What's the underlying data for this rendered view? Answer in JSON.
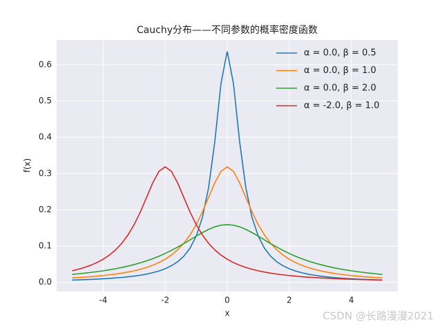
{
  "chart_data": {
    "type": "line",
    "title": "Cauchy分布——不同参数的概率密度函数",
    "xlabel": "x",
    "ylabel": "f(x)",
    "x": [
      -5,
      -4.8,
      -4.6,
      -4.4,
      -4.2,
      -4,
      -3.8,
      -3.6,
      -3.4,
      -3.2,
      -3,
      -2.8,
      -2.6,
      -2.4,
      -2.2,
      -2,
      -1.8,
      -1.6,
      -1.4,
      -1.2,
      -1,
      -0.8,
      -0.6,
      -0.4,
      -0.2,
      0,
      0.2,
      0.4,
      0.6,
      0.8,
      1,
      1.2,
      1.4,
      1.6,
      1.8,
      2,
      2.2,
      2.4,
      2.6,
      2.8,
      3,
      3.2,
      3.4,
      3.6,
      3.8,
      4,
      4.2,
      4.4,
      4.6,
      4.8,
      5
    ],
    "series": [
      {
        "name": "α = 0.0, β = 0.5",
        "color": "#1f77b4",
        "values": [
          0.0063,
          0.0068,
          0.0074,
          0.0081,
          0.0089,
          0.0098,
          0.0108,
          0.0121,
          0.0135,
          0.0152,
          0.0172,
          0.0197,
          0.0227,
          0.0265,
          0.0313,
          0.0375,
          0.0456,
          0.0566,
          0.072,
          0.0942,
          0.1273,
          0.1788,
          0.2609,
          0.3882,
          0.5488,
          0.6366,
          0.5488,
          0.3882,
          0.2609,
          0.1788,
          0.1273,
          0.0942,
          0.072,
          0.0566,
          0.0456,
          0.0375,
          0.0313,
          0.0265,
          0.0227,
          0.0197,
          0.0172,
          0.0152,
          0.0135,
          0.0121,
          0.0108,
          0.0098,
          0.0089,
          0.0081,
          0.0074,
          0.0068,
          0.0063
        ]
      },
      {
        "name": "α = 0.0, β = 1.0",
        "color": "#ff7f0e",
        "values": [
          0.0122,
          0.0132,
          0.0144,
          0.0156,
          0.0171,
          0.0187,
          0.0206,
          0.0228,
          0.0253,
          0.0283,
          0.0318,
          0.036,
          0.041,
          0.0471,
          0.0545,
          0.0637,
          0.0751,
          0.0894,
          0.1075,
          0.1305,
          0.1592,
          0.1941,
          0.2341,
          0.2744,
          0.3061,
          0.3183,
          0.3061,
          0.2744,
          0.2341,
          0.1941,
          0.1592,
          0.1305,
          0.1075,
          0.0894,
          0.0751,
          0.0637,
          0.0545,
          0.0471,
          0.041,
          0.036,
          0.0318,
          0.0283,
          0.0253,
          0.0228,
          0.0206,
          0.0187,
          0.0171,
          0.0156,
          0.0144,
          0.0132,
          0.0122
        ]
      },
      {
        "name": "α = 0.0, β = 2.0",
        "color": "#2ca02c",
        "values": [
          0.022,
          0.0235,
          0.0253,
          0.0273,
          0.0294,
          0.0318,
          0.0345,
          0.0375,
          0.0409,
          0.0447,
          0.049,
          0.0538,
          0.0592,
          0.0652,
          0.072,
          0.0796,
          0.0879,
          0.0971,
          0.1068,
          0.117,
          0.1273,
          0.1372,
          0.146,
          0.153,
          0.1576,
          0.1592,
          0.1576,
          0.153,
          0.146,
          0.1372,
          0.1273,
          0.117,
          0.1068,
          0.0971,
          0.0879,
          0.0796,
          0.072,
          0.0652,
          0.0592,
          0.0538,
          0.049,
          0.0447,
          0.0409,
          0.0375,
          0.0345,
          0.0318,
          0.0294,
          0.0273,
          0.0253,
          0.0235,
          0.022
        ]
      },
      {
        "name": "α = -2.0, β = 1.0",
        "color": "#d62728",
        "values": [
          0.0318,
          0.036,
          0.041,
          0.0471,
          0.0545,
          0.0637,
          0.0751,
          0.0894,
          0.1075,
          0.1305,
          0.1592,
          0.1941,
          0.2341,
          0.2744,
          0.3061,
          0.3183,
          0.3061,
          0.2744,
          0.2341,
          0.1941,
          0.1592,
          0.1305,
          0.1075,
          0.0894,
          0.0751,
          0.0637,
          0.0545,
          0.0471,
          0.041,
          0.036,
          0.0318,
          0.0283,
          0.0253,
          0.0228,
          0.0206,
          0.0187,
          0.0171,
          0.0156,
          0.0144,
          0.0132,
          0.0122,
          0.0114,
          0.0106,
          0.0098,
          0.0092,
          0.0086,
          0.0081,
          0.0076,
          0.0071,
          0.0067,
          0.0064
        ]
      }
    ],
    "xlim": [
      -5.5,
      5.5
    ],
    "xticks": [
      -4,
      -2,
      0,
      2,
      4
    ],
    "ylim": [
      -0.0252,
      0.6681
    ],
    "yticks": [
      {
        "value": 0,
        "label": "0.0"
      },
      0.1,
      0.2,
      0.3,
      0.4,
      0.5,
      0.6
    ],
    "grid": true,
    "legend": "upper right",
    "watermark": "CSDN @长路漫漫2021"
  }
}
